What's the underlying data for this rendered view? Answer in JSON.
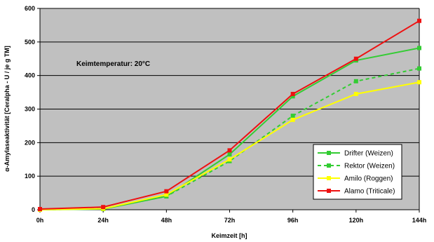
{
  "chart_data": {
    "type": "line",
    "x": [
      "0h",
      "24h",
      "48h",
      "72h",
      "96h",
      "120h",
      "144h"
    ],
    "xlabel": "Keimzeit [h]",
    "ylabel": "α-Amylaseaktivität [Ceralpha - U / je g TM]",
    "ylim": [
      0,
      600
    ],
    "yticks": [
      0,
      100,
      200,
      300,
      400,
      500,
      600
    ],
    "grid": true,
    "legend_position": "bottom-right",
    "annotation": "Keimtemperatur: 20°C",
    "background_color": "#c0c0c0",
    "series": [
      {
        "name": "Drifter (Weizen)",
        "color": "#33cc33",
        "dashed": false,
        "marker": "square",
        "values": [
          0,
          2,
          40,
          165,
          338,
          445,
          482
        ]
      },
      {
        "name": "Rektor (Weizen)",
        "color": "#33cc33",
        "dashed": true,
        "marker": "square",
        "values": [
          0,
          3,
          40,
          145,
          280,
          383,
          421
        ]
      },
      {
        "name": "Amilo (Roggen)",
        "color": "#ffff00",
        "dashed": false,
        "marker": "square",
        "values": [
          0,
          3,
          45,
          150,
          268,
          345,
          380
        ]
      },
      {
        "name": "Alamo (Triticale)",
        "color": "#ee1111",
        "dashed": false,
        "marker": "square",
        "values": [
          2,
          8,
          55,
          177,
          345,
          450,
          563
        ]
      }
    ]
  }
}
